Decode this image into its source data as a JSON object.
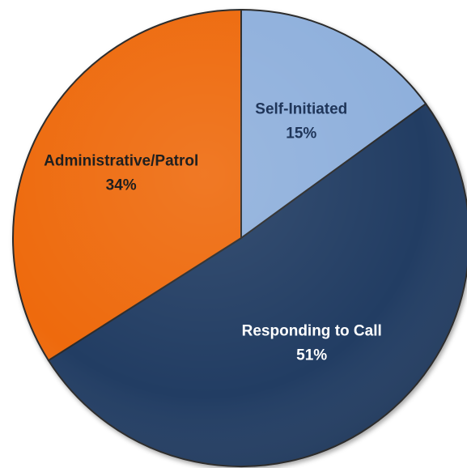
{
  "chart_data": {
    "type": "pie",
    "title": "",
    "start": "top, clockwise",
    "slices": [
      {
        "label": "Self-Initiated",
        "percent_label": "15%",
        "value": 15,
        "color": "#8fb0dc",
        "label_color": "#1f3559"
      },
      {
        "label": "Responding to Call",
        "percent_label": "51%",
        "value": 51,
        "color": "#243d63",
        "label_color": "#ffffff"
      },
      {
        "label": "Administrative/Patrol",
        "percent_label": "34%",
        "value": 34,
        "color": "#ee6a10",
        "label_color": "#1f1f1f"
      }
    ]
  }
}
